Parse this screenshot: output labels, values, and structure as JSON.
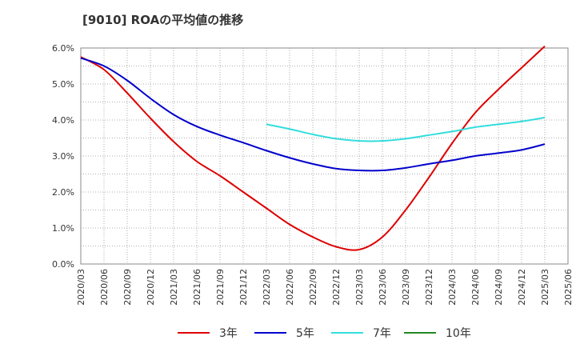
{
  "header": {
    "title": "[9010]  ROAの平均値の推移"
  },
  "chart_data": {
    "type": "line",
    "title": "[9010]  ROAの平均値の推移",
    "xlabel": "",
    "ylabel": "",
    "x": [
      "2020/03",
      "2020/06",
      "2020/09",
      "2020/12",
      "2021/03",
      "2021/06",
      "2021/09",
      "2021/12",
      "2022/03",
      "2022/06",
      "2022/09",
      "2022/12",
      "2023/03",
      "2023/06",
      "2023/09",
      "2023/12",
      "2024/03",
      "2024/06",
      "2024/09",
      "2024/12",
      "2025/03",
      "2025/06"
    ],
    "ylim": [
      0,
      6.0
    ],
    "yticks": [
      "0.0%",
      "1.0%",
      "2.0%",
      "3.0%",
      "4.0%",
      "5.0%",
      "6.0%"
    ],
    "grid": true,
    "legend_position": "bottom",
    "series": [
      {
        "name": "3年",
        "color": "#dd0000",
        "values": [
          5.75,
          5.4,
          4.75,
          4.05,
          3.4,
          2.85,
          2.45,
          2.0,
          1.55,
          1.1,
          0.75,
          0.48,
          0.4,
          0.75,
          1.5,
          2.4,
          3.35,
          4.2,
          4.85,
          5.45,
          6.05,
          null
        ]
      },
      {
        "name": "5年",
        "color": "#0000cc",
        "values": [
          5.72,
          5.5,
          5.1,
          4.6,
          4.15,
          3.82,
          3.58,
          3.37,
          3.15,
          2.95,
          2.78,
          2.65,
          2.6,
          2.6,
          2.67,
          2.78,
          2.88,
          3.0,
          3.08,
          3.17,
          3.33,
          null
        ]
      },
      {
        "name": "7年",
        "color": "#33dddd",
        "values": [
          null,
          null,
          null,
          null,
          null,
          null,
          null,
          null,
          3.88,
          3.75,
          3.6,
          3.48,
          3.42,
          3.42,
          3.48,
          3.58,
          3.68,
          3.8,
          3.88,
          3.96,
          4.07,
          null
        ]
      },
      {
        "name": "10年",
        "color": "#228822",
        "values": [
          null,
          null,
          null,
          null,
          null,
          null,
          null,
          null,
          null,
          null,
          null,
          null,
          null,
          null,
          null,
          null,
          null,
          null,
          null,
          null,
          null,
          null
        ]
      }
    ]
  }
}
